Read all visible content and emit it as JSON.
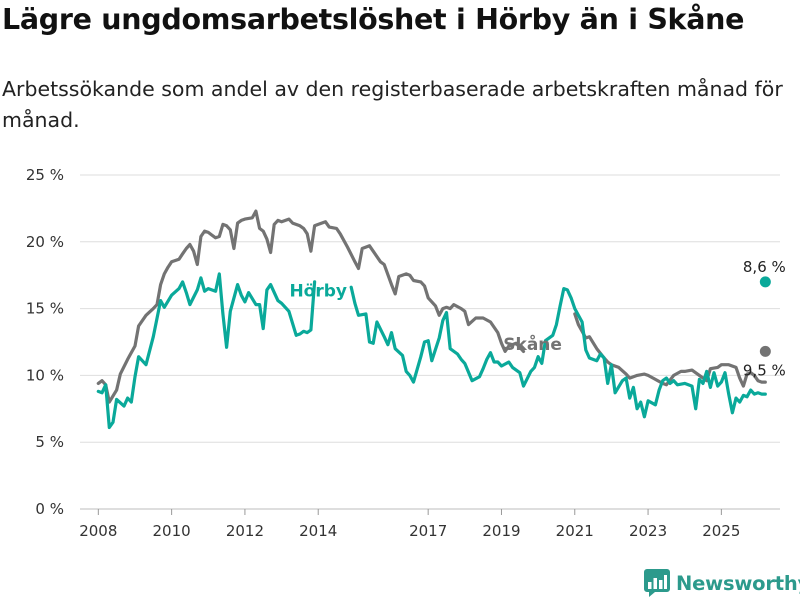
{
  "title": "Lägre ungdomsarbetslöshet i Hörby än i Skåne",
  "subtitle": "Arbetssökande som andel av den registerbaserade arbetskraften månad för månad.",
  "brand": {
    "name": "Newsworthy",
    "icon": "newsworthy-logo-icon",
    "color": "#2c9a8c"
  },
  "chart_data": {
    "type": "line",
    "ylim": [
      0,
      25
    ],
    "xlim": [
      2007.5,
      2026.6
    ],
    "yticks": [
      0,
      5,
      10,
      15,
      20,
      25
    ],
    "ytick_labels": [
      "0 %",
      "5 %",
      "10 %",
      "15 %",
      "20 %",
      "25 %"
    ],
    "xticks": [
      2008,
      2010,
      2012,
      2014,
      2017,
      2019,
      2021,
      2023,
      2025
    ],
    "grid": true,
    "series": [
      {
        "name": "Skåne",
        "color": "#737373",
        "end_label": "9,5 %",
        "points": [
          [
            2008.0,
            9.4
          ],
          [
            2008.1,
            9.6
          ],
          [
            2008.2,
            9.3
          ],
          [
            2008.3,
            8.0
          ],
          [
            2008.5,
            8.9
          ],
          [
            2008.6,
            10.1
          ],
          [
            2008.8,
            11.2
          ],
          [
            2009.0,
            12.2
          ],
          [
            2009.1,
            13.7
          ],
          [
            2009.3,
            14.5
          ],
          [
            2009.5,
            15.0
          ],
          [
            2009.6,
            15.3
          ],
          [
            2009.7,
            16.8
          ],
          [
            2009.8,
            17.6
          ],
          [
            2009.9,
            18.1
          ],
          [
            2010.0,
            18.5
          ],
          [
            2010.2,
            18.7
          ],
          [
            2010.3,
            19.1
          ],
          [
            2010.4,
            19.5
          ],
          [
            2010.5,
            19.8
          ],
          [
            2010.6,
            19.3
          ],
          [
            2010.7,
            18.3
          ],
          [
            2010.8,
            20.4
          ],
          [
            2010.9,
            20.8
          ],
          [
            2011.0,
            20.7
          ],
          [
            2011.1,
            20.5
          ],
          [
            2011.2,
            20.3
          ],
          [
            2011.3,
            20.4
          ],
          [
            2011.4,
            21.3
          ],
          [
            2011.5,
            21.2
          ],
          [
            2011.6,
            20.9
          ],
          [
            2011.7,
            19.5
          ],
          [
            2011.8,
            21.4
          ],
          [
            2011.9,
            21.6
          ],
          [
            2012.0,
            21.7
          ],
          [
            2012.2,
            21.8
          ],
          [
            2012.3,
            22.3
          ],
          [
            2012.4,
            21.0
          ],
          [
            2012.5,
            20.8
          ],
          [
            2012.6,
            20.2
          ],
          [
            2012.7,
            19.2
          ],
          [
            2012.8,
            21.3
          ],
          [
            2012.9,
            21.6
          ],
          [
            2013.0,
            21.5
          ],
          [
            2013.2,
            21.7
          ],
          [
            2013.3,
            21.4
          ],
          [
            2013.5,
            21.2
          ],
          [
            2013.6,
            21.0
          ],
          [
            2013.7,
            20.6
          ],
          [
            2013.8,
            19.3
          ],
          [
            2013.9,
            21.2
          ],
          [
            2014.0,
            21.3
          ],
          [
            2014.2,
            21.5
          ],
          [
            2014.3,
            21.1
          ],
          [
            2014.5,
            21.0
          ],
          [
            2014.6,
            20.6
          ],
          [
            2014.8,
            19.6
          ],
          [
            2015.0,
            18.5
          ],
          [
            2015.1,
            18.0
          ],
          [
            2015.2,
            19.5
          ],
          [
            2015.4,
            19.7
          ],
          [
            2015.5,
            19.3
          ],
          [
            2015.7,
            18.5
          ],
          [
            2015.8,
            18.3
          ],
          [
            2016.0,
            16.8
          ],
          [
            2016.1,
            16.1
          ],
          [
            2016.2,
            17.4
          ],
          [
            2016.4,
            17.6
          ],
          [
            2016.5,
            17.5
          ],
          [
            2016.6,
            17.1
          ],
          [
            2016.8,
            17.0
          ],
          [
            2016.9,
            16.7
          ],
          [
            2017.0,
            15.8
          ],
          [
            2017.2,
            15.2
          ],
          [
            2017.3,
            14.5
          ],
          [
            2017.4,
            15.0
          ],
          [
            2017.5,
            15.1
          ],
          [
            2017.6,
            15.0
          ],
          [
            2017.7,
            15.3
          ],
          [
            2017.9,
            15.0
          ],
          [
            2018.0,
            14.8
          ],
          [
            2018.1,
            13.8
          ],
          [
            2018.3,
            14.3
          ],
          [
            2018.5,
            14.3
          ],
          [
            2018.7,
            14.0
          ],
          [
            2018.9,
            13.2
          ],
          [
            2019.0,
            12.4
          ],
          [
            2019.1,
            11.8
          ],
          [
            2019.2,
            12.2
          ],
          [
            2019.4,
            12.4
          ],
          [
            2019.6,
            11.8
          ]
        ]
      },
      {
        "name": "",
        "color": "#737373",
        "points": [
          [
            2021.0,
            14.6
          ],
          [
            2021.1,
            13.8
          ],
          [
            2021.3,
            12.8
          ],
          [
            2021.4,
            12.9
          ],
          [
            2021.6,
            12.0
          ],
          [
            2021.8,
            11.3
          ],
          [
            2021.9,
            11.0
          ],
          [
            2022.0,
            10.8
          ],
          [
            2022.2,
            10.6
          ],
          [
            2022.4,
            10.1
          ],
          [
            2022.5,
            9.8
          ],
          [
            2022.7,
            10.0
          ],
          [
            2022.9,
            10.1
          ],
          [
            2023.0,
            10.0
          ],
          [
            2023.2,
            9.7
          ],
          [
            2023.4,
            9.4
          ],
          [
            2023.5,
            9.3
          ],
          [
            2023.7,
            10.0
          ],
          [
            2023.9,
            10.3
          ],
          [
            2024.0,
            10.3
          ],
          [
            2024.2,
            10.4
          ],
          [
            2024.4,
            10.0
          ],
          [
            2024.6,
            9.6
          ],
          [
            2024.7,
            10.5
          ],
          [
            2024.9,
            10.6
          ],
          [
            2025.0,
            10.8
          ],
          [
            2025.2,
            10.8
          ],
          [
            2025.4,
            10.6
          ],
          [
            2025.5,
            9.8
          ],
          [
            2025.6,
            9.2
          ],
          [
            2025.7,
            10.1
          ],
          [
            2025.8,
            10.2
          ],
          [
            2025.9,
            10.0
          ],
          [
            2026.0,
            9.6
          ],
          [
            2026.1,
            9.5
          ],
          [
            2026.2,
            9.5
          ]
        ]
      },
      {
        "name": "Hörby",
        "color": "#0aa99a",
        "end_label": "8,6 %",
        "points": [
          [
            2008.0,
            8.8
          ],
          [
            2008.1,
            8.7
          ],
          [
            2008.2,
            9.3
          ],
          [
            2008.3,
            6.1
          ],
          [
            2008.4,
            6.5
          ],
          [
            2008.5,
            8.2
          ],
          [
            2008.7,
            7.7
          ],
          [
            2008.8,
            8.3
          ],
          [
            2008.9,
            8.0
          ],
          [
            2009.0,
            9.9
          ],
          [
            2009.1,
            11.4
          ],
          [
            2009.3,
            10.8
          ],
          [
            2009.5,
            12.9
          ],
          [
            2009.7,
            15.6
          ],
          [
            2009.8,
            15.1
          ],
          [
            2010.0,
            16.0
          ],
          [
            2010.2,
            16.5
          ],
          [
            2010.3,
            17.0
          ],
          [
            2010.4,
            16.2
          ],
          [
            2010.5,
            15.3
          ],
          [
            2010.7,
            16.4
          ],
          [
            2010.8,
            17.3
          ],
          [
            2010.9,
            16.3
          ],
          [
            2011.0,
            16.5
          ],
          [
            2011.2,
            16.3
          ],
          [
            2011.3,
            17.6
          ],
          [
            2011.4,
            14.6
          ],
          [
            2011.5,
            12.1
          ],
          [
            2011.6,
            14.8
          ],
          [
            2011.8,
            16.8
          ],
          [
            2011.9,
            16.0
          ],
          [
            2012.0,
            15.5
          ],
          [
            2012.1,
            16.2
          ],
          [
            2012.3,
            15.3
          ],
          [
            2012.4,
            15.3
          ],
          [
            2012.5,
            13.5
          ],
          [
            2012.6,
            16.4
          ],
          [
            2012.7,
            16.8
          ],
          [
            2012.9,
            15.6
          ],
          [
            2013.0,
            15.4
          ],
          [
            2013.2,
            14.8
          ],
          [
            2013.4,
            13.0
          ],
          [
            2013.5,
            13.1
          ],
          [
            2013.6,
            13.3
          ],
          [
            2013.7,
            13.2
          ],
          [
            2013.8,
            13.4
          ],
          [
            2013.9,
            17.0
          ]
        ]
      },
      {
        "name": "",
        "color": "#0aa99a",
        "points": [
          [
            2014.9,
            16.6
          ],
          [
            2015.0,
            15.4
          ],
          [
            2015.1,
            14.5
          ],
          [
            2015.3,
            14.6
          ],
          [
            2015.4,
            12.5
          ],
          [
            2015.5,
            12.4
          ],
          [
            2015.6,
            14.0
          ],
          [
            2015.8,
            12.9
          ],
          [
            2015.9,
            12.3
          ],
          [
            2016.0,
            13.2
          ],
          [
            2016.1,
            12.0
          ],
          [
            2016.3,
            11.5
          ],
          [
            2016.4,
            10.3
          ],
          [
            2016.5,
            10.0
          ],
          [
            2016.6,
            9.5
          ],
          [
            2016.8,
            11.4
          ],
          [
            2016.9,
            12.5
          ],
          [
            2017.0,
            12.6
          ],
          [
            2017.1,
            11.1
          ],
          [
            2017.3,
            12.8
          ],
          [
            2017.4,
            14.1
          ],
          [
            2017.5,
            14.7
          ],
          [
            2017.6,
            12.0
          ],
          [
            2017.8,
            11.6
          ],
          [
            2017.9,
            11.2
          ],
          [
            2018.0,
            10.9
          ],
          [
            2018.2,
            9.6
          ],
          [
            2018.4,
            9.9
          ],
          [
            2018.5,
            10.5
          ],
          [
            2018.6,
            11.2
          ],
          [
            2018.7,
            11.7
          ],
          [
            2018.8,
            11.0
          ],
          [
            2018.9,
            11.0
          ],
          [
            2019.0,
            10.7
          ],
          [
            2019.2,
            11.0
          ],
          [
            2019.3,
            10.6
          ],
          [
            2019.5,
            10.2
          ],
          [
            2019.6,
            9.2
          ],
          [
            2019.8,
            10.3
          ],
          [
            2019.9,
            10.6
          ],
          [
            2020.0,
            11.4
          ],
          [
            2020.1,
            10.9
          ],
          [
            2020.2,
            12.6
          ],
          [
            2020.4,
            13.0
          ],
          [
            2020.5,
            13.8
          ],
          [
            2020.6,
            15.2
          ],
          [
            2020.7,
            16.5
          ],
          [
            2020.8,
            16.4
          ],
          [
            2020.9,
            15.8
          ],
          [
            2021.0,
            15.0
          ],
          [
            2021.1,
            14.5
          ],
          [
            2021.2,
            14.0
          ],
          [
            2021.3,
            11.9
          ],
          [
            2021.4,
            11.3
          ],
          [
            2021.6,
            11.1
          ],
          [
            2021.7,
            11.6
          ],
          [
            2021.8,
            11.3
          ],
          [
            2021.9,
            9.4
          ],
          [
            2022.0,
            10.8
          ],
          [
            2022.1,
            8.7
          ],
          [
            2022.3,
            9.6
          ],
          [
            2022.4,
            9.8
          ],
          [
            2022.5,
            8.3
          ],
          [
            2022.6,
            9.1
          ],
          [
            2022.7,
            7.5
          ],
          [
            2022.8,
            8.0
          ],
          [
            2022.9,
            6.9
          ],
          [
            2023.0,
            8.1
          ],
          [
            2023.2,
            7.8
          ],
          [
            2023.3,
            8.9
          ],
          [
            2023.4,
            9.6
          ],
          [
            2023.5,
            9.8
          ],
          [
            2023.6,
            9.4
          ],
          [
            2023.7,
            9.6
          ],
          [
            2023.8,
            9.3
          ],
          [
            2024.0,
            9.4
          ],
          [
            2024.2,
            9.2
          ],
          [
            2024.3,
            7.5
          ],
          [
            2024.4,
            9.7
          ],
          [
            2024.5,
            9.4
          ],
          [
            2024.6,
            10.3
          ],
          [
            2024.7,
            9.1
          ],
          [
            2024.8,
            10.2
          ],
          [
            2024.9,
            9.2
          ],
          [
            2025.0,
            9.5
          ],
          [
            2025.1,
            10.2
          ],
          [
            2025.2,
            8.6
          ],
          [
            2025.3,
            7.2
          ],
          [
            2025.4,
            8.3
          ],
          [
            2025.5,
            8.0
          ],
          [
            2025.6,
            8.5
          ],
          [
            2025.7,
            8.4
          ],
          [
            2025.8,
            8.9
          ],
          [
            2025.9,
            8.6
          ],
          [
            2026.0,
            8.7
          ],
          [
            2026.1,
            8.6
          ],
          [
            2026.2,
            8.6
          ]
        ]
      }
    ],
    "labels": [
      {
        "text": "Hörby",
        "x": 2014.0,
        "y": 15.9,
        "color": "#0aa99a"
      },
      {
        "text": "Skåne",
        "x": 2019.85,
        "y": 11.9,
        "color": "#737373"
      }
    ],
    "end_point": {
      "x": 2026.2
    }
  }
}
